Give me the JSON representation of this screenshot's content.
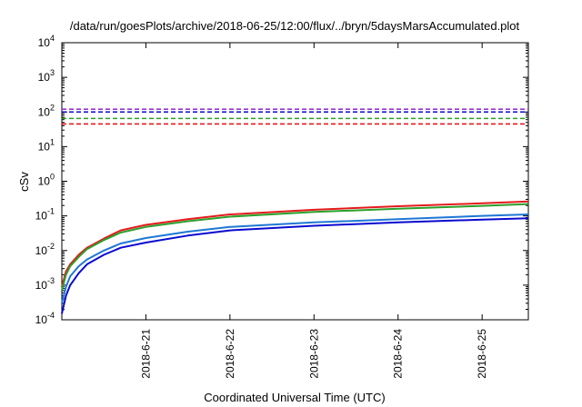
{
  "chart_data": {
    "type": "line",
    "title": "/data/run/goesPlots/archive/2018-06-25/12:00/flux/../bryn/5daysMarsAccumulated.plot",
    "xlabel": "Coordinated Universal Time (UTC)",
    "ylabel": "cSv",
    "y_scale": "log",
    "ylim": [
      0.0001,
      10000
    ],
    "xlim": [
      20.0,
      25.55
    ],
    "y_ticks": [
      {
        "base": "10",
        "exp": "-4",
        "value": 0.0001
      },
      {
        "base": "10",
        "exp": "-3",
        "value": 0.001
      },
      {
        "base": "10",
        "exp": "-2",
        "value": 0.01
      },
      {
        "base": "10",
        "exp": "-1",
        "value": 0.1
      },
      {
        "base": "10",
        "exp": "0",
        "value": 1
      },
      {
        "base": "10",
        "exp": "1",
        "value": 10
      },
      {
        "base": "10",
        "exp": "2",
        "value": 100
      },
      {
        "base": "10",
        "exp": "3",
        "value": 1000
      },
      {
        "base": "10",
        "exp": "4",
        "value": 10000
      }
    ],
    "x_ticks": [
      {
        "label": "2018-6-21",
        "value": 21
      },
      {
        "label": "2018-6-22",
        "value": 22
      },
      {
        "label": "2018-6-23",
        "value": 23
      },
      {
        "label": "2018-6-24",
        "value": 24
      },
      {
        "label": "2018-6-25",
        "value": 25
      }
    ],
    "grid": false,
    "legend": "none",
    "series": [
      {
        "color": "#e41a1c",
        "x": [
          20.0,
          20.05,
          20.1,
          20.2,
          20.3,
          20.5,
          20.7,
          21.0,
          21.5,
          22.0,
          23.0,
          24.0,
          25.0,
          25.55
        ],
        "y": [
          0.0009,
          0.0025,
          0.004,
          0.0075,
          0.012,
          0.022,
          0.038,
          0.055,
          0.08,
          0.11,
          0.15,
          0.19,
          0.23,
          0.26
        ]
      },
      {
        "color": "#2ca02c",
        "x": [
          20.0,
          20.05,
          20.1,
          20.2,
          20.3,
          20.5,
          20.7,
          21.0,
          21.5,
          22.0,
          23.0,
          24.0,
          25.0,
          25.55
        ],
        "y": [
          0.0007,
          0.002,
          0.0035,
          0.0065,
          0.011,
          0.02,
          0.033,
          0.048,
          0.07,
          0.095,
          0.13,
          0.16,
          0.195,
          0.22
        ]
      },
      {
        "color": "#1f77d4",
        "x": [
          20.0,
          20.05,
          20.1,
          20.2,
          20.3,
          20.5,
          20.7,
          21.0,
          21.5,
          22.0,
          23.0,
          24.0,
          25.0,
          25.55
        ],
        "y": [
          0.0003,
          0.0009,
          0.0018,
          0.0035,
          0.0055,
          0.01,
          0.016,
          0.023,
          0.035,
          0.048,
          0.065,
          0.08,
          0.1,
          0.11
        ]
      },
      {
        "color": "#0a0ad0",
        "x": [
          20.0,
          20.05,
          20.1,
          20.2,
          20.3,
          20.5,
          20.7,
          21.0,
          21.5,
          22.0,
          23.0,
          24.0,
          25.0,
          25.55
        ],
        "y": [
          0.00015,
          0.0005,
          0.001,
          0.0022,
          0.004,
          0.0075,
          0.012,
          0.017,
          0.027,
          0.038,
          0.052,
          0.065,
          0.078,
          0.085
        ]
      }
    ],
    "reference_lines": [
      {
        "color": "#9a33cc",
        "y": 120,
        "style": "dashed"
      },
      {
        "color": "#0a0ad0",
        "y": 100,
        "style": "dashed"
      },
      {
        "color": "#2ca02c",
        "y": 65,
        "style": "dashed"
      },
      {
        "color": "#e41a1c",
        "y": 45,
        "style": "dashed"
      }
    ]
  }
}
